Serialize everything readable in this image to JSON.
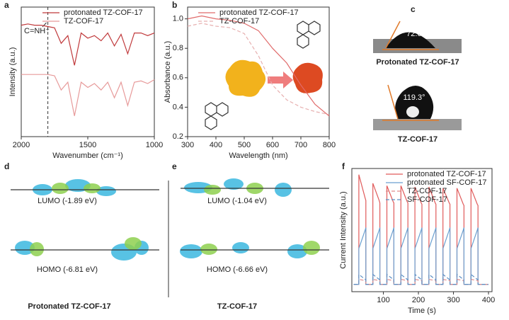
{
  "chart_data": [
    {
      "type": "line",
      "xlabel": "Wavenumber (cm⁻¹)",
      "ylabel": "Intensity (a.u.)",
      "xlim": [
        2000,
        1000
      ],
      "ylim": [
        0,
        1
      ],
      "xticks": [
        2000,
        1500,
        1000
      ],
      "legend": "upper center",
      "x": [
        2000,
        1950,
        1900,
        1850,
        1800,
        1750,
        1700,
        1650,
        1600,
        1550,
        1500,
        1450,
        1400,
        1350,
        1300,
        1250,
        1200,
        1150,
        1100,
        1050,
        1000
      ],
      "series": [
        {
          "name": "protonated TZ-COF-17",
          "color": "#c0393b",
          "dash": false,
          "values": [
            0.86,
            0.87,
            0.86,
            0.86,
            0.85,
            0.84,
            0.72,
            0.78,
            0.55,
            0.8,
            0.76,
            0.78,
            0.74,
            0.8,
            0.7,
            0.79,
            0.64,
            0.8,
            0.8,
            0.78,
            0.8
          ]
        },
        {
          "name": "TZ-COF-17",
          "color": "#e79a9a",
          "dash": false,
          "values": [
            0.48,
            0.48,
            0.48,
            0.48,
            0.48,
            0.47,
            0.36,
            0.42,
            0.16,
            0.42,
            0.38,
            0.41,
            0.36,
            0.42,
            0.3,
            0.42,
            0.24,
            0.42,
            0.43,
            0.41,
            0.44
          ]
        }
      ],
      "marker_x": 1800,
      "annotation": "C=NH⁺"
    },
    {
      "type": "line",
      "xlabel": "Wavelength (nm)",
      "ylabel": "Absorbance (a.u.)",
      "xlim": [
        300,
        800
      ],
      "ylim": [
        0.2,
        1.08
      ],
      "xticks": [
        300,
        400,
        500,
        600,
        700,
        800
      ],
      "yticks": [
        0.2,
        0.4,
        0.6,
        0.8,
        {
          "value": 1,
          "label": "1.0"
        }
      ],
      "legend": "upper left",
      "x": [
        300,
        350,
        400,
        450,
        500,
        550,
        600,
        650,
        700,
        750,
        800
      ],
      "series": [
        {
          "name": "protonated TZ-COF-17",
          "color": "#e06a6a",
          "dash": false,
          "values": [
            1.0,
            1.02,
            1.0,
            0.99,
            0.97,
            0.92,
            0.8,
            0.7,
            0.55,
            0.42,
            0.34
          ]
        },
        {
          "name": "TZ-COF-17",
          "color": "#e7b0b0",
          "dash": true,
          "values": [
            0.95,
            0.97,
            0.95,
            0.94,
            0.9,
            0.75,
            0.55,
            0.45,
            0.4,
            0.37,
            0.35
          ]
        }
      ]
    },
    {
      "type": "line",
      "xlabel": "Time (s)",
      "ylabel": "Current Intensity (a.u.)",
      "xlim": [
        10,
        410
      ],
      "ylim": [
        0,
        1
      ],
      "xticks": [
        100,
        200,
        300,
        400
      ],
      "legend": "upper right",
      "x": [
        15,
        30,
        30,
        48,
        50,
        50,
        70,
        70,
        88,
        90,
        90,
        110,
        110,
        128,
        130,
        130,
        150,
        150,
        168,
        170,
        170,
        190,
        190,
        208,
        210,
        210,
        230,
        230,
        248,
        250,
        250,
        270,
        270,
        288,
        290,
        290,
        310,
        310,
        328,
        330,
        330,
        350,
        350,
        368,
        370,
        370,
        400
      ],
      "series": [
        {
          "name": "protonated TZ-COF-17",
          "color": "#e05a5a",
          "dash": false,
          "values": [
            0.06,
            0.06,
            0.95,
            0.76,
            0.74,
            0.06,
            0.06,
            0.88,
            0.74,
            0.72,
            0.06,
            0.06,
            0.86,
            0.73,
            0.72,
            0.06,
            0.06,
            0.86,
            0.73,
            0.72,
            0.06,
            0.06,
            0.85,
            0.72,
            0.71,
            0.06,
            0.06,
            0.85,
            0.72,
            0.71,
            0.06,
            0.06,
            0.84,
            0.72,
            0.71,
            0.06,
            0.06,
            0.84,
            0.71,
            0.7,
            0.06,
            0.06,
            0.84,
            0.71,
            0.7,
            0.06,
            0.06
          ]
        },
        {
          "name": "protonated SF-COF-17",
          "color": "#6a9fd0",
          "dash": false,
          "values": [
            0.06,
            0.06,
            0.35,
            0.5,
            0.52,
            0.06,
            0.06,
            0.35,
            0.5,
            0.52,
            0.06,
            0.06,
            0.35,
            0.5,
            0.52,
            0.06,
            0.06,
            0.35,
            0.5,
            0.52,
            0.06,
            0.06,
            0.35,
            0.5,
            0.52,
            0.06,
            0.06,
            0.35,
            0.5,
            0.52,
            0.06,
            0.06,
            0.35,
            0.5,
            0.52,
            0.06,
            0.06,
            0.35,
            0.5,
            0.52,
            0.06,
            0.06,
            0.35,
            0.5,
            0.52,
            0.06,
            0.06
          ]
        },
        {
          "name": "TZ-COF-17",
          "color": "#e08a8a",
          "dash": true,
          "values": [
            0.06,
            0.06,
            0.1,
            0.09,
            0.09,
            0.06,
            0.06,
            0.1,
            0.09,
            0.09,
            0.06,
            0.06,
            0.1,
            0.09,
            0.09,
            0.06,
            0.06,
            0.1,
            0.09,
            0.09,
            0.06,
            0.06,
            0.1,
            0.09,
            0.09,
            0.06,
            0.06,
            0.1,
            0.09,
            0.09,
            0.06,
            0.06,
            0.1,
            0.09,
            0.09,
            0.06,
            0.06,
            0.1,
            0.09,
            0.09,
            0.06,
            0.06,
            0.1,
            0.09,
            0.09,
            0.06,
            0.06
          ]
        },
        {
          "name": "SF-COF-17",
          "color": "#5b8fc4",
          "dash": true,
          "values": [
            0.06,
            0.06,
            0.14,
            0.1,
            0.1,
            0.06,
            0.06,
            0.14,
            0.1,
            0.1,
            0.06,
            0.06,
            0.14,
            0.1,
            0.1,
            0.06,
            0.06,
            0.14,
            0.1,
            0.1,
            0.06,
            0.06,
            0.14,
            0.1,
            0.1,
            0.06,
            0.06,
            0.14,
            0.1,
            0.1,
            0.06,
            0.06,
            0.14,
            0.1,
            0.1,
            0.06,
            0.06,
            0.14,
            0.1,
            0.1,
            0.06,
            0.06,
            0.14,
            0.1,
            0.1,
            0.06,
            0.06
          ]
        }
      ]
    }
  ],
  "panel_labels": [
    "a",
    "b",
    "c",
    "d",
    "e",
    "f"
  ],
  "contact_angle": {
    "protonated": {
      "angle": "72.6°",
      "label": "Protonated TZ-COF-17"
    },
    "neutral": {
      "angle": "119.3°",
      "label": "TZ-COF-17"
    }
  },
  "orbitals": {
    "protonated": {
      "lumo": "LUMO (-1.89 eV)",
      "homo": "HOMO (-6.81 eV)",
      "label": "Protonated TZ-COF-17"
    },
    "neutral": {
      "lumo": "LUMO (-1.04 eV)",
      "homo": "HOMO (-6.66 eV)",
      "label": "TZ-COF-17"
    }
  }
}
